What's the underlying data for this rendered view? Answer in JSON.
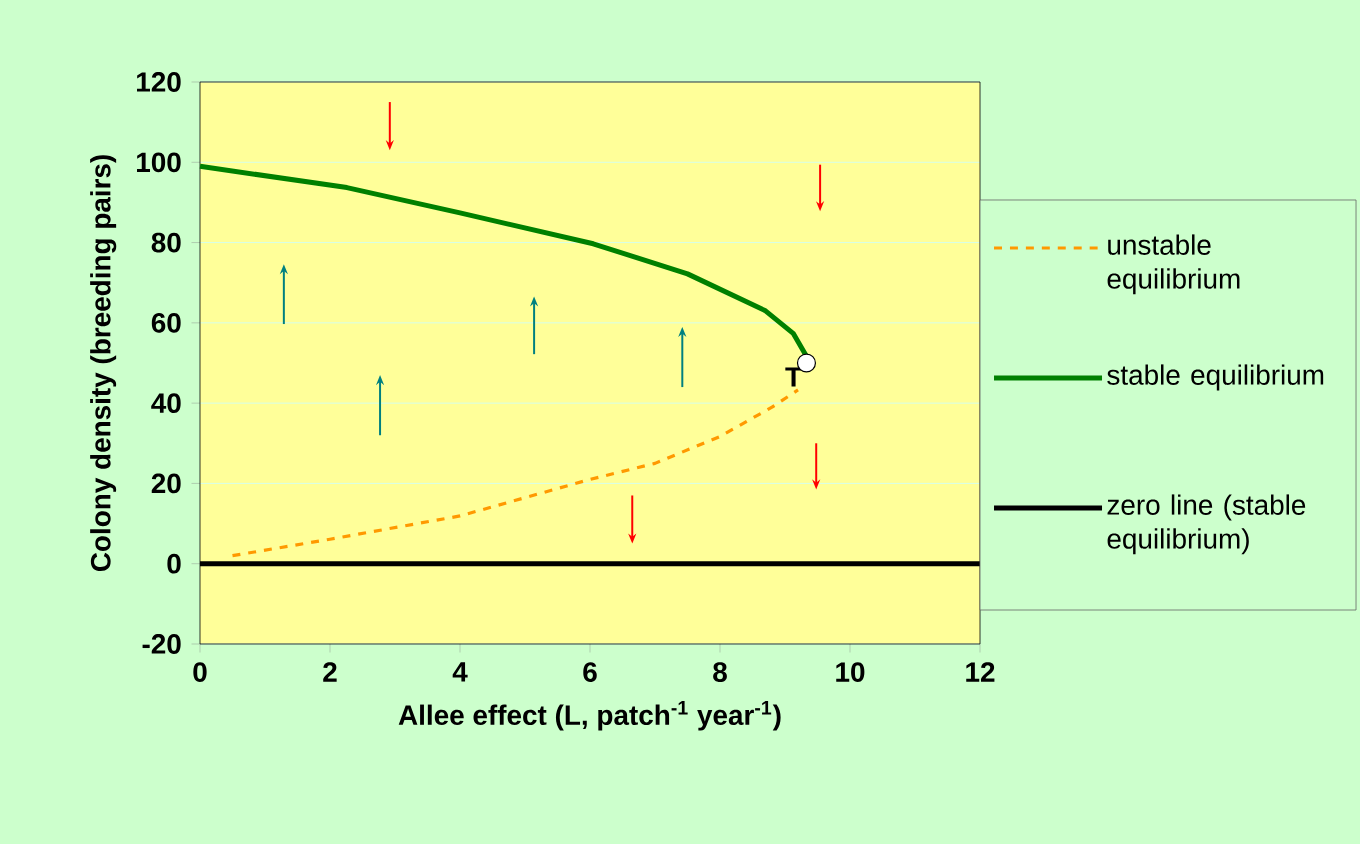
{
  "chart_data": {
    "type": "line",
    "xlabel": "Allee effect (L, patch$^{-1}$ year$^{-1}$)",
    "ylabel": "Colony density  (breeding pairs)",
    "xlim": [
      0,
      12
    ],
    "xticks": [
      0,
      2,
      4,
      6,
      8,
      10,
      12
    ],
    "ylim": [
      -20,
      120
    ],
    "yticks": [
      -20,
      0,
      20,
      40,
      60,
      80,
      100,
      120
    ],
    "grid": "y",
    "legend": "right",
    "series": [
      {
        "name": "unstable equilibrium",
        "color": "#ff9900",
        "line_style": "dashed",
        "x": [
          0.5,
          2,
          4,
          6,
          7,
          8,
          8.8,
          9.2
        ],
        "values": [
          2,
          6.1,
          11.9,
          21,
          25,
          31.7,
          39,
          43.3
        ]
      },
      {
        "name": "stable equilibrium",
        "color": "#008000",
        "line_style": "solid",
        "x": [
          0,
          2.26,
          4,
          6.05,
          7.5,
          8.7,
          9.13,
          9.33
        ],
        "values": [
          99,
          93.7,
          87.4,
          79.7,
          72.2,
          63,
          57.3,
          51.7
        ]
      },
      {
        "name": "zero line (stable equilibrium)",
        "color": "#000000",
        "line_style": "solid",
        "x": [
          0,
          12
        ],
        "values": [
          0,
          0
        ]
      },
      {
        "type": "scatter",
        "color": "#ffffff",
        "x": [
          9.33
        ],
        "values": [
          50
        ]
      }
    ],
    "annotations": [
      {
        "text": "T",
        "x": 9.33,
        "y": 50
      }
    ]
  }
}
